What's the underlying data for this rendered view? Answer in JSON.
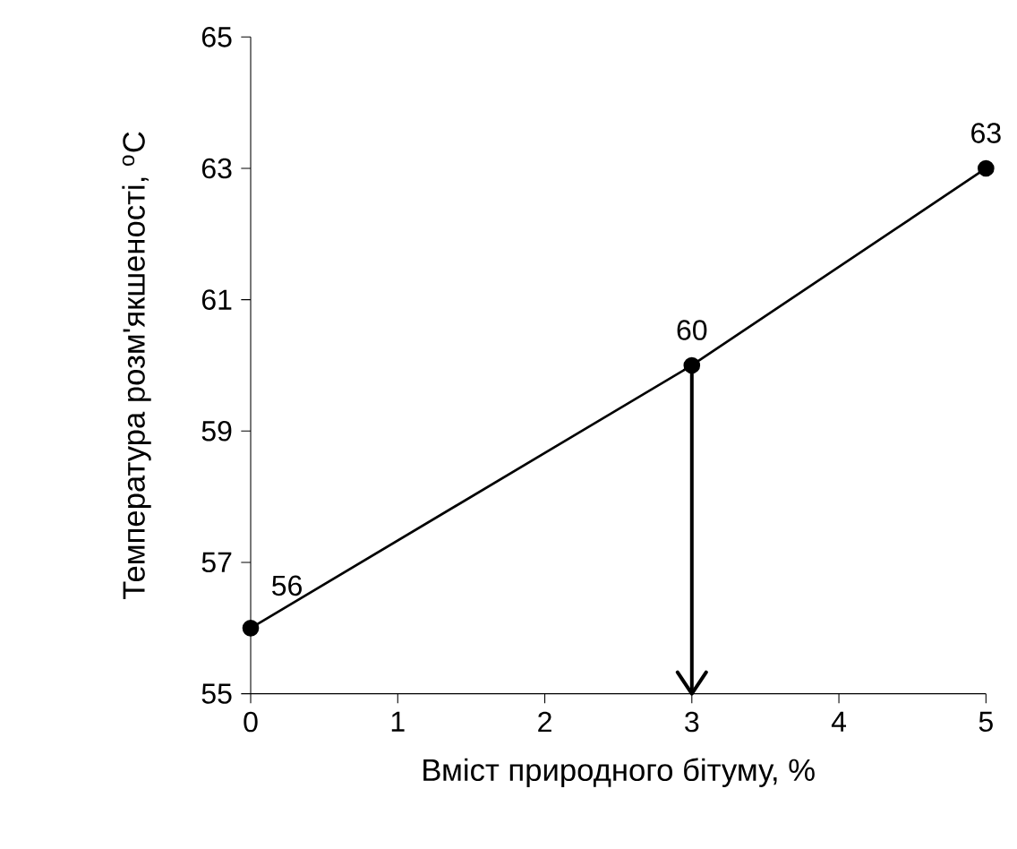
{
  "chart_data": {
    "type": "line",
    "x": [
      0,
      3,
      5
    ],
    "values": [
      56,
      60,
      63
    ],
    "value_labels": [
      "56",
      "60",
      "63"
    ],
    "color": "#000000",
    "marker": "circle",
    "line_style": "solid",
    "xlim": [
      0,
      5
    ],
    "xticks": [
      0,
      1,
      2,
      3,
      4,
      5
    ],
    "ylim": [
      55,
      65
    ],
    "yticks": [
      55,
      57,
      59,
      61,
      63,
      65
    ],
    "xlabel": "Вміст природного бітуму, %",
    "ylabel": "Температура розм'якшеності, $^{o}$C",
    "grid": false,
    "legend": false,
    "ref_lines": [
      {
        "axis": "x",
        "value": 3,
        "color": "#000000",
        "line_style": "solid"
      }
    ]
  }
}
